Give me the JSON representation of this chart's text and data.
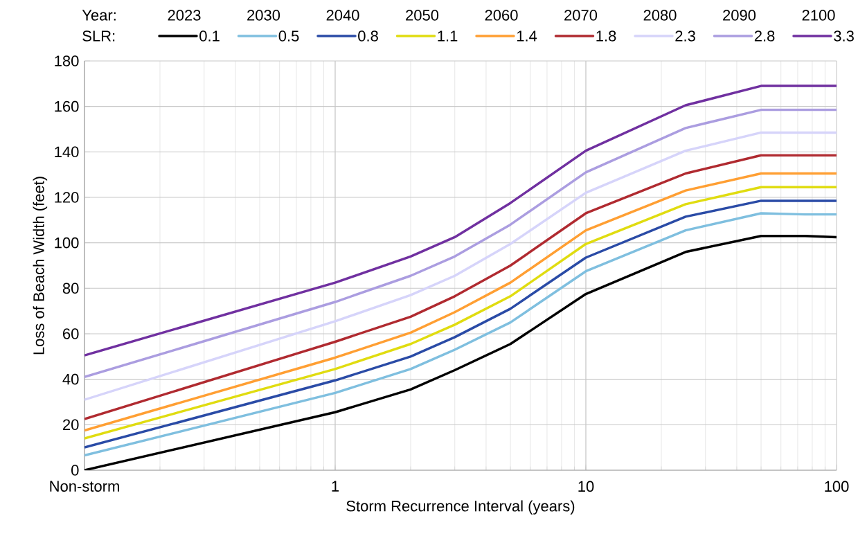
{
  "chart_data": {
    "type": "line",
    "xlabel": "Storm Recurrence Interval (years)",
    "ylabel": "Loss of Beach Width (feet)",
    "legend_title": "SLR:",
    "annotations": [
      "Year:",
      "2023",
      "2030",
      "2040",
      "2050",
      "2060",
      "2070",
      "2080",
      "2090",
      "2100"
    ],
    "x": [
      0.1,
      1,
      2,
      3,
      5,
      10,
      25,
      50,
      75,
      100
    ],
    "series": [
      {
        "name": "0.1",
        "color": "#000000",
        "values": [
          0,
          25.5,
          35.5,
          44,
          55.5,
          77.5,
          96,
          103,
          103,
          102.5
        ]
      },
      {
        "name": "0.5",
        "color": "#7fbfdf",
        "values": [
          6.5,
          34,
          44.5,
          53,
          65,
          87.5,
          105.5,
          113,
          112.5,
          112.5
        ]
      },
      {
        "name": "0.8",
        "color": "#2a4ba6",
        "values": [
          10,
          39.5,
          50,
          58.5,
          71,
          93.5,
          111.5,
          118.5,
          118.5,
          118.5
        ]
      },
      {
        "name": "1.1",
        "color": "#e0dc10",
        "values": [
          14,
          44.5,
          55.5,
          64,
          76.5,
          99.5,
          117,
          124.5,
          124.5,
          124.5
        ]
      },
      {
        "name": "1.4",
        "color": "#ff9f33",
        "values": [
          17.5,
          49.5,
          60.5,
          69.5,
          82.5,
          105.5,
          123,
          130.5,
          130.5,
          130.5
        ]
      },
      {
        "name": "1.8",
        "color": "#b02a30",
        "values": [
          22.5,
          56.5,
          67.5,
          76.5,
          90,
          113,
          130.5,
          138.5,
          138.5,
          138.5
        ]
      },
      {
        "name": "2.3",
        "color": "#d6d4fa",
        "values": [
          31,
          65.5,
          77,
          85.5,
          99.5,
          122,
          140.5,
          148.5,
          148.5,
          148.5
        ]
      },
      {
        "name": "2.8",
        "color": "#ab9de0",
        "values": [
          41,
          74,
          85.5,
          94,
          108,
          131,
          150.5,
          158.5,
          158.5,
          158.5
        ]
      },
      {
        "name": "3.3",
        "color": "#7030a0",
        "values": [
          50.5,
          82.5,
          94,
          102.5,
          117.5,
          140.5,
          160.5,
          169,
          169,
          169
        ]
      }
    ],
    "log": "x",
    "xlim": [
      0.1,
      100
    ],
    "xticks": [
      {
        "value": 0.1,
        "label": "Non-storm"
      },
      1,
      10,
      100
    ],
    "ylim": [
      0,
      180
    ],
    "yticks": [
      0,
      20,
      40,
      60,
      80,
      100,
      120,
      140,
      160,
      180
    ],
    "grid": true,
    "legend": "top",
    "marker": "none",
    "line_style": "solid"
  }
}
